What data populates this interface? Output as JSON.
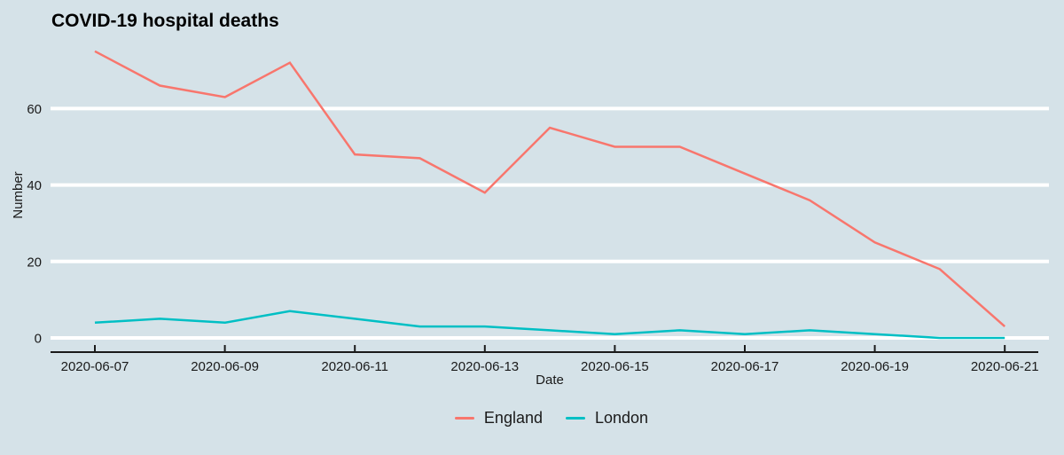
{
  "title": "COVID-19 hospital deaths",
  "chart_data": {
    "type": "line",
    "title": "COVID-19 hospital deaths",
    "xlabel": "Date",
    "ylabel": "Number",
    "x": [
      "2020-06-07",
      "2020-06-08",
      "2020-06-09",
      "2020-06-10",
      "2020-06-11",
      "2020-06-12",
      "2020-06-13",
      "2020-06-14",
      "2020-06-15",
      "2020-06-16",
      "2020-06-17",
      "2020-06-18",
      "2020-06-19",
      "2020-06-20",
      "2020-06-21"
    ],
    "series": [
      {
        "name": "England",
        "color": "#F8766D",
        "values": [
          75,
          66,
          63,
          72,
          48,
          47,
          38,
          55,
          50,
          50,
          43,
          36,
          25,
          18,
          3
        ]
      },
      {
        "name": "London",
        "color": "#00BFC4",
        "values": [
          4,
          5,
          4,
          7,
          5,
          3,
          3,
          2,
          1,
          2,
          1,
          2,
          1,
          0,
          0
        ]
      }
    ],
    "yticks": [
      0,
      20,
      40,
      60
    ],
    "xtick_labels": [
      "2020-06-07",
      "2020-06-09",
      "2020-06-11",
      "2020-06-13",
      "2020-06-15",
      "2020-06-17",
      "2020-06-19",
      "2020-06-21"
    ],
    "ylim": [
      0,
      76
    ],
    "grid": "horizontal-white",
    "legend_position": "bottom-center",
    "colors": {
      "background": "#d5e2e8",
      "gridline": "#ffffff",
      "axis": "#1a1a1a",
      "text": "#1a1a1a"
    }
  }
}
